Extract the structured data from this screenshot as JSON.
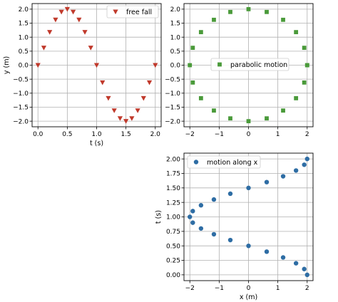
{
  "chart_data": [
    {
      "id": "free-fall",
      "type": "scatter",
      "xlabel": "t (s)",
      "ylabel": "y (m)",
      "xlim": [
        -0.1,
        2.1
      ],
      "ylim": [
        -2.2,
        2.2
      ],
      "xticks": [
        0.0,
        0.5,
        1.0,
        1.5,
        2.0
      ],
      "xtick_labels": [
        "0.0",
        "0.5",
        "1.0",
        "1.5",
        "2.0"
      ],
      "yticks": [
        -2.0,
        -1.5,
        -1.0,
        -0.5,
        0.0,
        0.5,
        1.0,
        1.5,
        2.0
      ],
      "ytick_labels": [
        "−2.0",
        "−1.5",
        "−1.0",
        "−0.5",
        "0.0",
        "0.5",
        "1.0",
        "1.5",
        "2.0"
      ],
      "grid": true,
      "legend_position": "upper right",
      "series": [
        {
          "name": "free fall",
          "marker": "triangle-down",
          "color": "#c0392b",
          "x": [
            0.0,
            0.1,
            0.2,
            0.3,
            0.4,
            0.5,
            0.6,
            0.7,
            0.8,
            0.9,
            1.0,
            1.1,
            1.2,
            1.3,
            1.4,
            1.5,
            1.6,
            1.7,
            1.8,
            1.9,
            2.0
          ],
          "y": [
            0.0,
            0.62,
            1.18,
            1.62,
            1.9,
            2.0,
            1.9,
            1.62,
            1.18,
            0.62,
            0.0,
            -0.62,
            -1.18,
            -1.62,
            -1.9,
            -2.0,
            -1.9,
            -1.62,
            -1.18,
            -0.62,
            0.0
          ]
        }
      ]
    },
    {
      "id": "parabolic-motion",
      "type": "scatter",
      "xlabel": "",
      "ylabel": "",
      "xlim": [
        -2.2,
        2.2
      ],
      "ylim": [
        -2.2,
        2.2
      ],
      "xticks": [
        -2,
        -1,
        0,
        1,
        2
      ],
      "xtick_labels": [
        "−2",
        "−1",
        "0",
        "1",
        "2"
      ],
      "yticks": [
        -2.0,
        -1.5,
        -1.0,
        -0.5,
        0.0,
        0.5,
        1.0,
        1.5,
        2.0
      ],
      "ytick_labels": [
        "−2.0",
        "−1.5",
        "−1.0",
        "−0.5",
        "0.0",
        "0.5",
        "1.0",
        "1.5",
        "2.0"
      ],
      "grid": true,
      "legend_position": "center right",
      "series": [
        {
          "name": "parabolic motion",
          "marker": "square",
          "color": "#4a9a3a",
          "x": [
            2.0,
            1.9,
            1.62,
            1.18,
            0.62,
            0.0,
            -0.62,
            -1.18,
            -1.62,
            -1.9,
            -2.0,
            -1.9,
            -1.62,
            -1.18,
            -0.62,
            0.0,
            0.62,
            1.18,
            1.62,
            1.9,
            2.0
          ],
          "y": [
            0.0,
            0.62,
            1.18,
            1.62,
            1.9,
            2.0,
            1.9,
            1.62,
            1.18,
            0.62,
            0.0,
            -0.62,
            -1.18,
            -1.62,
            -1.9,
            -2.0,
            -1.9,
            -1.62,
            -1.18,
            -0.62,
            0.0
          ]
        }
      ]
    },
    {
      "id": "motion-along-x",
      "type": "scatter",
      "xlabel": "x (m)",
      "ylabel": "t (s)",
      "xlim": [
        -2.2,
        2.2
      ],
      "ylim": [
        -0.1,
        2.1
      ],
      "xticks": [
        -2,
        -1,
        0,
        1,
        2
      ],
      "xtick_labels": [
        "−2",
        "−1",
        "0",
        "1",
        "2"
      ],
      "yticks": [
        0.0,
        0.25,
        0.5,
        0.75,
        1.0,
        1.25,
        1.5,
        1.75,
        2.0
      ],
      "ytick_labels": [
        "0.00",
        "0.25",
        "0.50",
        "0.75",
        "1.00",
        "1.25",
        "1.50",
        "1.75",
        "2.00"
      ],
      "grid": true,
      "legend_position": "upper left",
      "series": [
        {
          "name": "motion along x",
          "marker": "circle",
          "color": "#2e6da4",
          "x": [
            2.0,
            1.9,
            1.62,
            1.18,
            0.62,
            0.0,
            -0.62,
            -1.18,
            -1.62,
            -1.9,
            -2.0,
            -1.9,
            -1.62,
            -1.18,
            -0.62,
            0.0,
            0.62,
            1.18,
            1.62,
            1.9,
            2.0
          ],
          "y": [
            0.0,
            0.1,
            0.2,
            0.3,
            0.4,
            0.5,
            0.6,
            0.7,
            0.8,
            0.9,
            1.0,
            1.1,
            1.2,
            1.3,
            1.4,
            1.5,
            1.6,
            1.7,
            1.8,
            1.9,
            2.0
          ]
        }
      ]
    }
  ]
}
